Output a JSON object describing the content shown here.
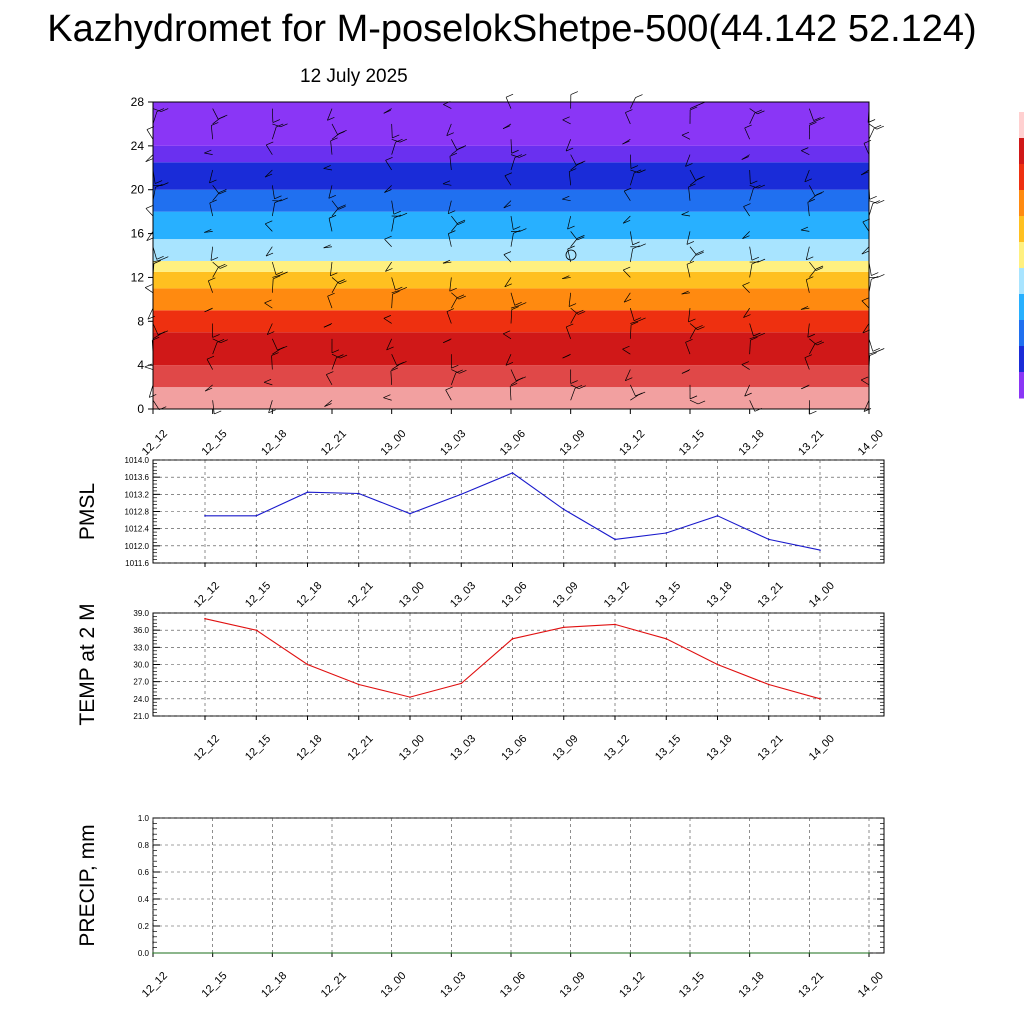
{
  "title": "Kazhydromet for M-poselokShetpe-500(44.142 52.124)",
  "date": "12 July 2025",
  "colors": {
    "pmsl_line": "#1a1acc",
    "temp_line": "#e01010",
    "precip_line": "#1a6e1a",
    "barb": "#000000"
  },
  "chart_data": [
    {
      "type": "heatmap",
      "name": "vertical profile",
      "x_ticks": [
        "12_12",
        "12_15",
        "12_18",
        "12_21",
        "13_00",
        "13_03",
        "13_06",
        "13_09",
        "13_12",
        "13_15",
        "13_18",
        "13_21",
        "14_00"
      ],
      "y_ticks": [
        0,
        4,
        8,
        12,
        16,
        20,
        24,
        28
      ],
      "ylim": [
        0,
        28
      ],
      "bands": [
        {
          "from": 0,
          "to": 2,
          "color": "#f2a0a0"
        },
        {
          "from": 2,
          "to": 4,
          "color": "#e04848"
        },
        {
          "from": 4,
          "to": 7,
          "color": "#d01818"
        },
        {
          "from": 7,
          "to": 9,
          "color": "#ee3010"
        },
        {
          "from": 9,
          "to": 11,
          "color": "#ff8a10"
        },
        {
          "from": 11,
          "to": 12.5,
          "color": "#ffc020"
        },
        {
          "from": 12.5,
          "to": 13.5,
          "color": "#fff080"
        },
        {
          "from": 13.5,
          "to": 15.5,
          "color": "#a8e4ff"
        },
        {
          "from": 15.5,
          "to": 18,
          "color": "#28b0ff"
        },
        {
          "from": 18,
          "to": 20,
          "color": "#2070f0"
        },
        {
          "from": 20,
          "to": 22.5,
          "color": "#1a2cd8"
        },
        {
          "from": 22.5,
          "to": 24,
          "color": "#6a30f0"
        },
        {
          "from": 24,
          "to": 28,
          "color": "#8a36f6"
        }
      ],
      "wind_barbs": "yes",
      "grid": "x"
    },
    {
      "type": "line",
      "ylabel": "PMSL",
      "categories": [
        "12_12",
        "12_15",
        "12_18",
        "12_21",
        "13_00",
        "13_03",
        "13_06",
        "13_09",
        "13_12",
        "13_15",
        "13_18",
        "13_21",
        "14_00"
      ],
      "values": [
        1012.7,
        1012.7,
        1013.25,
        1013.22,
        1012.75,
        1013.2,
        1013.7,
        1012.85,
        1012.15,
        1012.3,
        1012.7,
        1012.15,
        1011.9
      ],
      "y_ticks": [
        "1011.6",
        "1012.0",
        "1012.4",
        "1012.8",
        "1013.2",
        "1013.6",
        "1014.0"
      ],
      "ylim": [
        1011.6,
        1014.0
      ],
      "grid": "dashed"
    },
    {
      "type": "line",
      "ylabel": "TEMP at 2 M",
      "categories": [
        "12_12",
        "12_15",
        "12_18",
        "12_21",
        "13_00",
        "13_03",
        "13_06",
        "13_09",
        "13_12",
        "13_15",
        "13_18",
        "13_21",
        "14_00"
      ],
      "values": [
        38.0,
        36.0,
        30.0,
        26.5,
        24.3,
        26.7,
        34.5,
        36.5,
        37.0,
        34.5,
        30.0,
        26.5,
        24.0
      ],
      "y_ticks": [
        "21.0",
        "24.0",
        "27.0",
        "30.0",
        "33.0",
        "36.0",
        "39.0"
      ],
      "ylim": [
        21.0,
        39.0
      ],
      "grid": "dashed"
    },
    {
      "type": "line",
      "ylabel": "PRECIP, mm",
      "categories": [
        "12_12",
        "12_15",
        "12_18",
        "12_21",
        "13_00",
        "13_03",
        "13_06",
        "13_09",
        "13_12",
        "13_15",
        "13_18",
        "13_21",
        "14_00"
      ],
      "values": [
        0,
        0,
        0,
        0,
        0,
        0,
        0,
        0,
        0,
        0,
        0,
        0,
        0
      ],
      "y_ticks": [
        "0.0",
        "0.2",
        "0.4",
        "0.6",
        "0.8",
        "1.0"
      ],
      "ylim": [
        0,
        1.0
      ],
      "grid": "dashed"
    }
  ]
}
